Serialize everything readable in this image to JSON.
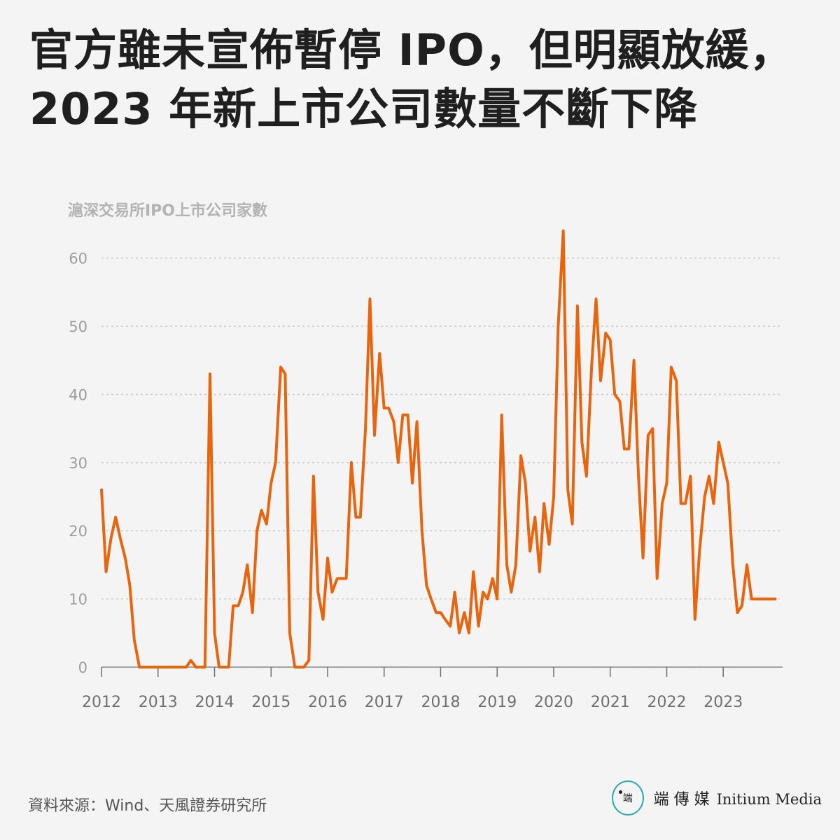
{
  "header": {
    "title_line1": "官方雖未宣佈暫停 IPO，但明顯放緩，",
    "title_line2": "2023 年新上市公司數量不斷下降"
  },
  "footer": {
    "source": "資料來源：Wind、天風證券研究所",
    "logo_mark": "端",
    "logo_cn": "端 傳 媒",
    "logo_en": "Initium Media"
  },
  "colors": {
    "line": "#e8650f",
    "grid": "#c9c9c9",
    "background": "#f4f4f4"
  },
  "chart_data": {
    "type": "line",
    "title": "",
    "ylabel": "滬深交易所IPO上市公司家數",
    "xlabel": "",
    "ylim": [
      0,
      65
    ],
    "yticks": [
      0,
      10,
      20,
      30,
      40,
      50,
      60
    ],
    "xlim": [
      2012,
      2024.05
    ],
    "xticks": [
      "2012",
      "2013",
      "2014",
      "2015",
      "2016",
      "2017",
      "2018",
      "2019",
      "2020",
      "2021",
      "2022",
      "2023"
    ],
    "grid": "horizontal dashed",
    "legend": "none",
    "series": [
      {
        "name": "",
        "x": [
          2012.0,
          2012.08,
          2012.17,
          2012.25,
          2012.33,
          2012.42,
          2012.5,
          2012.58,
          2012.67,
          2012.75,
          2012.83,
          2012.92,
          2013.0,
          2013.08,
          2013.17,
          2013.25,
          2013.33,
          2013.42,
          2013.5,
          2013.58,
          2013.67,
          2013.75,
          2013.83,
          2013.92,
          2014.0,
          2014.08,
          2014.17,
          2014.25,
          2014.33,
          2014.42,
          2014.5,
          2014.58,
          2014.67,
          2014.75,
          2014.83,
          2014.92,
          2015.0,
          2015.08,
          2015.17,
          2015.25,
          2015.33,
          2015.42,
          2015.5,
          2015.58,
          2015.67,
          2015.75,
          2015.83,
          2015.92,
          2016.0,
          2016.08,
          2016.17,
          2016.25,
          2016.33,
          2016.42,
          2016.5,
          2016.58,
          2016.67,
          2016.75,
          2016.83,
          2016.92,
          2017.0,
          2017.08,
          2017.17,
          2017.25,
          2017.33,
          2017.42,
          2017.5,
          2017.58,
          2017.67,
          2017.75,
          2017.83,
          2017.92,
          2018.0,
          2018.08,
          2018.17,
          2018.25,
          2018.33,
          2018.42,
          2018.5,
          2018.58,
          2018.67,
          2018.75,
          2018.83,
          2018.92,
          2019.0,
          2019.08,
          2019.17,
          2019.25,
          2019.33,
          2019.42,
          2019.5,
          2019.58,
          2019.67,
          2019.75,
          2019.83,
          2019.92,
          2020.0,
          2020.08,
          2020.17,
          2020.25,
          2020.33,
          2020.42,
          2020.5,
          2020.58,
          2020.67,
          2020.75,
          2020.83,
          2020.92,
          2021.0,
          2021.08,
          2021.17,
          2021.25,
          2021.33,
          2021.42,
          2021.5,
          2021.58,
          2021.67,
          2021.75,
          2021.83,
          2021.92,
          2022.0,
          2022.08,
          2022.17,
          2022.25,
          2022.33,
          2022.42,
          2022.5,
          2022.58,
          2022.67,
          2022.75,
          2022.83,
          2022.92,
          2023.0,
          2023.08,
          2023.17,
          2023.25,
          2023.33,
          2023.42,
          2023.5,
          2023.58,
          2023.67,
          2023.75,
          2023.83,
          2023.92
        ],
        "values": [
          26,
          14,
          19,
          22,
          19,
          16,
          12,
          4,
          0,
          0,
          0,
          0,
          0,
          0,
          0,
          0,
          0,
          0,
          0,
          1,
          0,
          0,
          0,
          43,
          5,
          0,
          0,
          0,
          9,
          9,
          11,
          15,
          8,
          20,
          23,
          21,
          27,
          30,
          44,
          43,
          5,
          0,
          0,
          0,
          1,
          28,
          11,
          7,
          16,
          11,
          13,
          13,
          13,
          30,
          22,
          22,
          35,
          54,
          34,
          46,
          38,
          38,
          36,
          30,
          37,
          37,
          27,
          36,
          20,
          12,
          10,
          8,
          8,
          7,
          6,
          11,
          5,
          8,
          5,
          14,
          6,
          11,
          10,
          13,
          10,
          37,
          15,
          11,
          15,
          31,
          27,
          17,
          22,
          14,
          24,
          18,
          25,
          50,
          64,
          26,
          21,
          53,
          33,
          28,
          44,
          54,
          42,
          49,
          48,
          40,
          39,
          32,
          32,
          45,
          28,
          16,
          34,
          35,
          13,
          24,
          27,
          44,
          42,
          24,
          24,
          28,
          7,
          17,
          25,
          28,
          24,
          33,
          30,
          27,
          15,
          8,
          9,
          15,
          10,
          10,
          10,
          10,
          10,
          10
        ]
      }
    ]
  }
}
